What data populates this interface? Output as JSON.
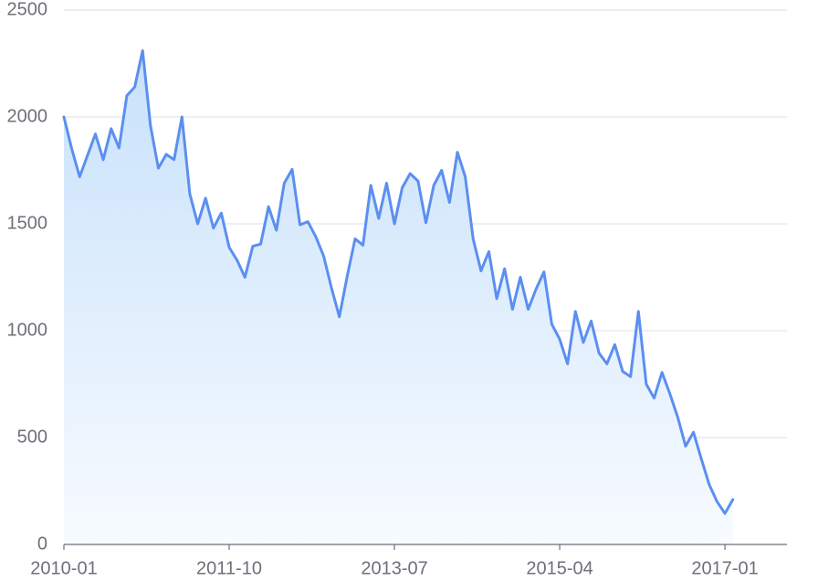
{
  "chart_data": {
    "type": "area",
    "title": "",
    "xlabel": "",
    "ylabel": "",
    "ylim": [
      0,
      2500
    ],
    "yticks": [
      "0",
      "500",
      "1000",
      "1500",
      "2000",
      "2500"
    ],
    "xticks": [
      "2010-01",
      "2011-10",
      "2013-07",
      "2015-04",
      "2017-01"
    ],
    "x_start": "2010-01",
    "x_end": "2017-02",
    "grid": true,
    "legend": "none",
    "colors": {
      "line": "#5b8ff0",
      "area_top": "#c8e1fb",
      "area_bottom": "#f7fbff",
      "grid": "#dcdfe6",
      "text": "#6e7079"
    },
    "series": [
      {
        "values": [
          2000,
          1850,
          1720,
          1820,
          1920,
          1800,
          1945,
          1855,
          2100,
          2140,
          2310,
          1960,
          1760,
          1825,
          1800,
          2000,
          1640,
          1500,
          1620,
          1480,
          1550,
          1390,
          1330,
          1250,
          1395,
          1405,
          1580,
          1470,
          1690,
          1755,
          1495,
          1510,
          1440,
          1350,
          1200,
          1065,
          1255,
          1430,
          1400,
          1680,
          1525,
          1690,
          1500,
          1670,
          1735,
          1700,
          1505,
          1680,
          1750,
          1600,
          1835,
          1720,
          1430,
          1280,
          1370,
          1150,
          1290,
          1100,
          1250,
          1100,
          1195,
          1275,
          1030,
          960,
          845,
          1090,
          945,
          1045,
          895,
          845,
          935,
          810,
          785,
          1090,
          750,
          685,
          805,
          705,
          595,
          460,
          525,
          400,
          280,
          200,
          145,
          210
        ]
      }
    ]
  }
}
